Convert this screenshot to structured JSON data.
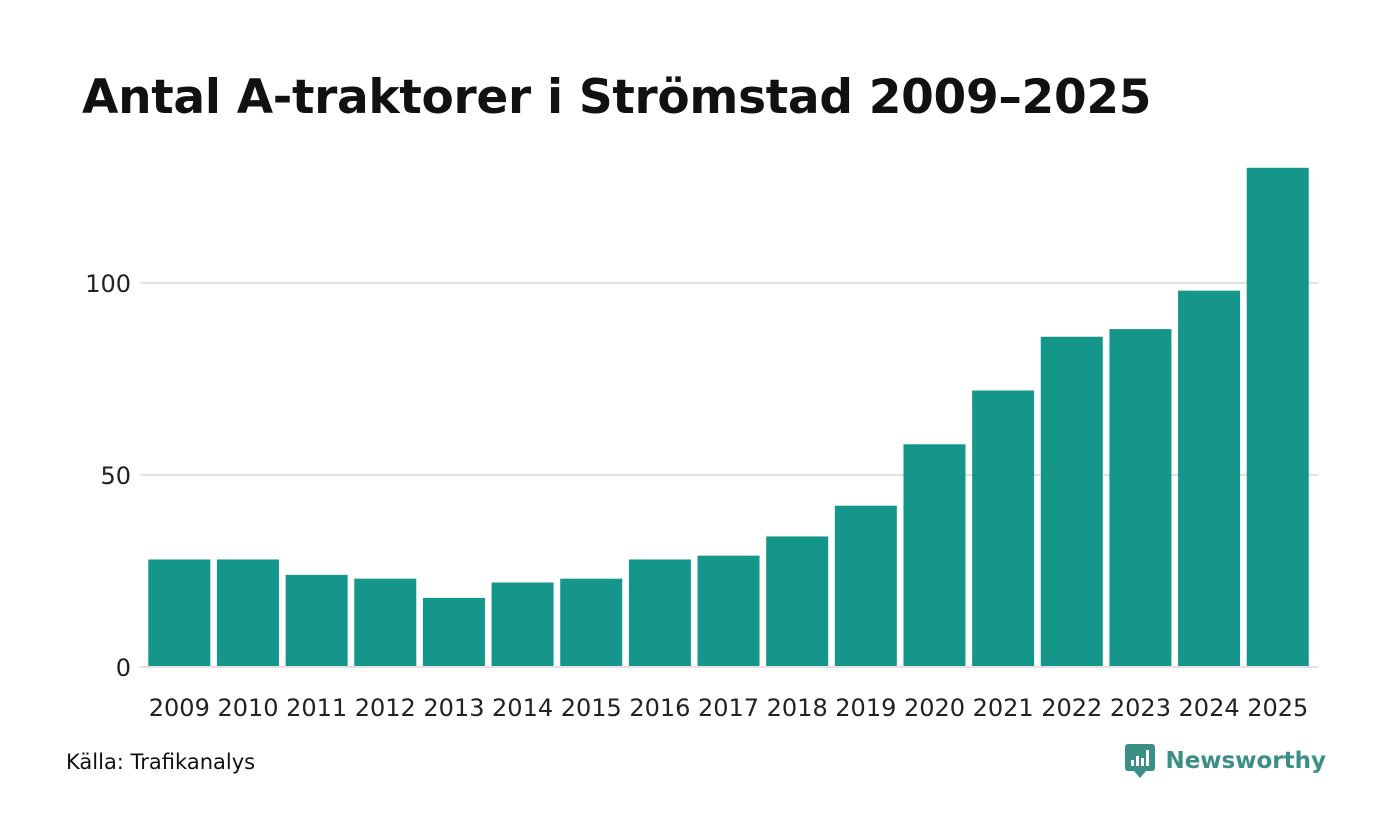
{
  "chart_data": {
    "type": "bar",
    "title": "Antal A-traktorer i Strömstad 2009–2025",
    "categories": [
      "2009",
      "2010",
      "2011",
      "2012",
      "2013",
      "2014",
      "2015",
      "2016",
      "2017",
      "2018",
      "2019",
      "2020",
      "2021",
      "2022",
      "2023",
      "2024",
      "2025"
    ],
    "values": [
      28,
      28,
      24,
      23,
      18,
      22,
      23,
      28,
      29,
      34,
      42,
      58,
      72,
      86,
      88,
      98,
      130
    ],
    "ylim": [
      0,
      130
    ],
    "yticks": [
      "0",
      "50",
      "100"
    ],
    "ytick_values": [
      0,
      50,
      100
    ],
    "xlabel": "",
    "ylabel": "",
    "grid": true,
    "legend": "none",
    "bar_color": "#14968a",
    "grid_color": "#e2e2e2"
  },
  "footer": {
    "source": "Källa: Trafikanalys",
    "brand": "Newsworthy"
  },
  "colors": {
    "brand": "#3b8f86"
  },
  "icons": {
    "brand_icon": "newsworthy-logo-icon"
  }
}
